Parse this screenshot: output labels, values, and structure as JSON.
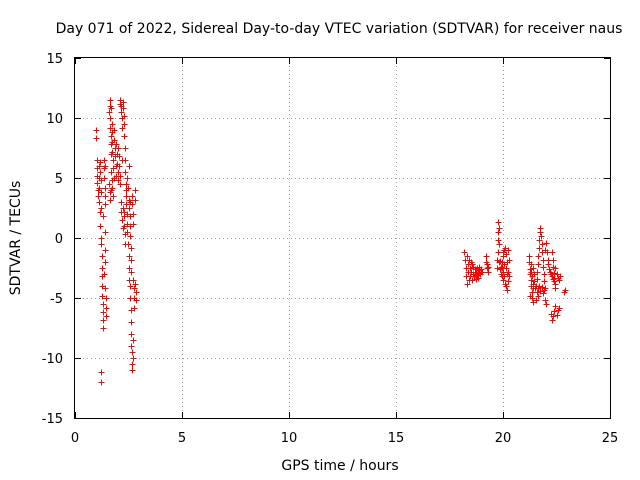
{
  "chart_data": {
    "type": "scatter",
    "title": "Day 071 of 2022, Sidereal Day-to-day VTEC variation (SDTVAR) for receiver naus",
    "xlabel": "GPS time / hours",
    "ylabel": "SDTVAR / TECUs",
    "xlim": [
      0,
      25
    ],
    "ylim": [
      -15,
      15
    ],
    "xticks": [
      0,
      5,
      10,
      15,
      20,
      25
    ],
    "yticks": [
      -15,
      -10,
      -5,
      0,
      5,
      10,
      15
    ],
    "grid": true,
    "marker": "+",
    "marker_color": "#ff0000",
    "series": [
      {
        "name": "SDTVAR",
        "points": [
          [
            1.0,
            9.0
          ],
          [
            1.0,
            8.3
          ],
          [
            1.02,
            6.5
          ],
          [
            1.03,
            5.8
          ],
          [
            1.05,
            5.2
          ],
          [
            1.05,
            4.6
          ],
          [
            1.07,
            4.0
          ],
          [
            1.08,
            3.5
          ],
          [
            1.1,
            6.0
          ],
          [
            1.1,
            5.0
          ],
          [
            1.12,
            4.2
          ],
          [
            1.13,
            3.0
          ],
          [
            1.15,
            2.2
          ],
          [
            1.15,
            1.0
          ],
          [
            1.17,
            5.5
          ],
          [
            1.18,
            6.3
          ],
          [
            1.2,
            4.8
          ],
          [
            1.2,
            3.8
          ],
          [
            1.22,
            2.5
          ],
          [
            1.22,
            0.0
          ],
          [
            1.23,
            -0.5
          ],
          [
            1.25,
            -1.5
          ],
          [
            1.25,
            -2.5
          ],
          [
            1.27,
            -3.2
          ],
          [
            1.28,
            -4.0
          ],
          [
            1.28,
            -4.8
          ],
          [
            1.3,
            -5.5
          ],
          [
            1.3,
            -6.2
          ],
          [
            1.32,
            -6.8
          ],
          [
            1.32,
            -7.5
          ],
          [
            1.2,
            -11.2
          ],
          [
            1.2,
            -12.0
          ],
          [
            1.35,
            6.5
          ],
          [
            1.35,
            5.8
          ],
          [
            1.37,
            5.0
          ],
          [
            1.38,
            4.2
          ],
          [
            1.4,
            3.5
          ],
          [
            1.4,
            2.8
          ],
          [
            1.42,
            6.0
          ],
          [
            1.42,
            -4.2
          ],
          [
            1.43,
            -5.0
          ],
          [
            1.45,
            -5.8
          ],
          [
            1.45,
            -6.5
          ],
          [
            1.35,
            -3.0
          ],
          [
            1.38,
            -2.0
          ],
          [
            1.4,
            -1.0
          ],
          [
            1.4,
            0.5
          ],
          [
            1.3,
            1.8
          ],
          [
            1.6,
            10.5
          ],
          [
            1.62,
            11.5
          ],
          [
            1.63,
            11.0
          ],
          [
            1.65,
            10.0
          ],
          [
            1.65,
            9.2
          ],
          [
            1.67,
            8.5
          ],
          [
            1.68,
            7.8
          ],
          [
            1.7,
            7.0
          ],
          [
            1.7,
            10.8
          ],
          [
            1.72,
            9.5
          ],
          [
            1.73,
            8.8
          ],
          [
            1.75,
            8.0
          ],
          [
            1.75,
            7.2
          ],
          [
            1.77,
            6.5
          ],
          [
            1.78,
            5.8
          ],
          [
            1.8,
            5.0
          ],
          [
            1.6,
            4.5
          ],
          [
            1.62,
            3.8
          ],
          [
            1.65,
            3.2
          ],
          [
            1.67,
            4.0
          ],
          [
            1.7,
            5.5
          ],
          [
            1.72,
            4.8
          ],
          [
            1.75,
            4.2
          ],
          [
            1.78,
            3.5
          ],
          [
            1.8,
            9.0
          ],
          [
            1.82,
            8.2
          ],
          [
            1.85,
            7.5
          ],
          [
            1.87,
            6.8
          ],
          [
            1.9,
            6.0
          ],
          [
            1.9,
            5.2
          ],
          [
            1.92,
            7.8
          ],
          [
            1.95,
            7.0
          ],
          [
            1.97,
            6.2
          ],
          [
            2.0,
            5.5
          ],
          [
            2.0,
            4.8
          ],
          [
            2.02,
            7.5
          ],
          [
            2.05,
            6.8
          ],
          [
            2.07,
            6.0
          ],
          [
            2.1,
            5.2
          ],
          [
            2.12,
            4.5
          ],
          [
            2.1,
            11.2
          ],
          [
            2.12,
            11.5
          ],
          [
            2.15,
            11.0
          ],
          [
            2.17,
            10.5
          ],
          [
            2.2,
            10.0
          ],
          [
            2.2,
            9.2
          ],
          [
            2.22,
            11.3
          ],
          [
            2.25,
            10.8
          ],
          [
            2.27,
            10.2
          ],
          [
            2.3,
            9.5
          ],
          [
            2.3,
            8.5
          ],
          [
            2.32,
            7.5
          ],
          [
            2.35,
            6.5
          ],
          [
            2.35,
            5.5
          ],
          [
            2.37,
            4.5
          ],
          [
            2.4,
            3.5
          ],
          [
            2.15,
            3.0
          ],
          [
            2.17,
            2.2
          ],
          [
            2.2,
            1.5
          ],
          [
            2.22,
            0.8
          ],
          [
            2.25,
            2.5
          ],
          [
            2.27,
            1.8
          ],
          [
            2.3,
            1.0
          ],
          [
            2.32,
            0.3
          ],
          [
            2.4,
            2.8
          ],
          [
            2.42,
            2.0
          ],
          [
            2.45,
            1.2
          ],
          [
            2.45,
            0.5
          ],
          [
            2.47,
            -0.5
          ],
          [
            2.5,
            -1.5
          ],
          [
            2.5,
            -2.5
          ],
          [
            2.52,
            -3.5
          ],
          [
            2.5,
            3.2
          ],
          [
            2.52,
            2.5
          ],
          [
            2.55,
            1.8
          ],
          [
            2.55,
            1.0
          ],
          [
            2.57,
            0.2
          ],
          [
            2.6,
            -0.8
          ],
          [
            2.6,
            -1.8
          ],
          [
            2.62,
            -2.8
          ],
          [
            2.55,
            -4.0
          ],
          [
            2.57,
            -5.0
          ],
          [
            2.6,
            -6.0
          ],
          [
            2.6,
            -7.0
          ],
          [
            2.62,
            -8.0
          ],
          [
            2.62,
            -9.0
          ],
          [
            2.65,
            -9.5
          ],
          [
            2.65,
            -10.5
          ],
          [
            2.65,
            3.5
          ],
          [
            2.67,
            2.8
          ],
          [
            2.7,
            2.0
          ],
          [
            2.7,
            1.2
          ],
          [
            2.72,
            -3.5
          ],
          [
            2.75,
            -4.2
          ],
          [
            2.75,
            -5.0
          ],
          [
            2.77,
            -5.8
          ],
          [
            2.8,
            4.0
          ],
          [
            2.8,
            3.2
          ],
          [
            2.82,
            -3.8
          ],
          [
            2.85,
            -4.5
          ],
          [
            2.85,
            -5.2
          ],
          [
            2.7,
            -8.5
          ],
          [
            2.72,
            -10.0
          ],
          [
            2.68,
            -11.0
          ],
          [
            2.45,
            5.0
          ],
          [
            2.47,
            4.2
          ],
          [
            2.5,
            6.0
          ],
          [
            2.35,
            -0.5
          ],
          [
            2.3,
            2.2
          ],
          [
            2.55,
            3.0
          ],
          [
            2.4,
            4.0
          ],
          [
            2.2,
            6.5
          ],
          [
            18.2,
            -1.2
          ],
          [
            18.22,
            -1.8
          ],
          [
            18.25,
            -2.5
          ],
          [
            18.27,
            -3.2
          ],
          [
            18.3,
            -3.8
          ],
          [
            18.32,
            -1.5
          ],
          [
            18.35,
            -2.2
          ],
          [
            18.37,
            -2.8
          ],
          [
            18.4,
            -3.5
          ],
          [
            18.42,
            -1.8
          ],
          [
            18.45,
            -2.5
          ],
          [
            18.47,
            -3.2
          ],
          [
            18.5,
            -2.0
          ],
          [
            18.52,
            -2.8
          ],
          [
            18.55,
            -3.5
          ],
          [
            18.57,
            -2.2
          ],
          [
            18.6,
            -3.0
          ],
          [
            18.62,
            -2.4
          ],
          [
            18.65,
            -3.2
          ],
          [
            18.67,
            -2.6
          ],
          [
            18.7,
            -3.0
          ],
          [
            18.72,
            -2.8
          ],
          [
            18.75,
            -3.4
          ],
          [
            18.78,
            -2.5
          ],
          [
            18.8,
            -3.1
          ],
          [
            18.82,
            -2.7
          ],
          [
            18.85,
            -3.3
          ],
          [
            18.88,
            -2.9
          ],
          [
            18.9,
            -2.4
          ],
          [
            18.92,
            -3.0
          ],
          [
            18.95,
            -2.6
          ],
          [
            19.0,
            -2.8
          ],
          [
            19.2,
            -1.5
          ],
          [
            19.22,
            -2.0
          ],
          [
            19.25,
            -2.5
          ],
          [
            19.27,
            -2.2
          ],
          [
            19.3,
            -2.8
          ],
          [
            19.32,
            -2.4
          ],
          [
            19.7,
            -1.8
          ],
          [
            19.72,
            -2.5
          ],
          [
            19.75,
            -1.2
          ],
          [
            19.75,
            -0.2
          ],
          [
            19.77,
            0.5
          ],
          [
            19.78,
            1.3
          ],
          [
            19.8,
            0.8
          ],
          [
            19.82,
            -0.5
          ],
          [
            19.8,
            -2.0
          ],
          [
            19.85,
            -2.6
          ],
          [
            19.88,
            -1.9
          ],
          [
            19.9,
            -2.4
          ],
          [
            19.92,
            -3.0
          ],
          [
            19.95,
            -2.5
          ],
          [
            19.97,
            -2.0
          ],
          [
            20.0,
            -2.8
          ],
          [
            20.0,
            -3.5
          ],
          [
            20.02,
            -1.5
          ],
          [
            20.05,
            -1.0
          ],
          [
            20.05,
            -2.2
          ],
          [
            20.07,
            -3.2
          ],
          [
            20.1,
            -3.8
          ],
          [
            20.12,
            -2.5
          ],
          [
            20.15,
            -1.3
          ],
          [
            20.15,
            -4.0
          ],
          [
            20.17,
            -3.0
          ],
          [
            20.2,
            -2.0
          ],
          [
            20.2,
            -4.3
          ],
          [
            20.22,
            -3.6
          ],
          [
            20.25,
            -2.8
          ],
          [
            20.27,
            -1.8
          ],
          [
            20.3,
            -3.2
          ],
          [
            20.0,
            -1.2
          ],
          [
            20.1,
            -0.8
          ],
          [
            20.22,
            -1.0
          ],
          [
            19.95,
            -3.2
          ],
          [
            21.2,
            -1.5
          ],
          [
            21.22,
            -2.0
          ],
          [
            21.25,
            -2.6
          ],
          [
            21.27,
            -3.0
          ],
          [
            21.3,
            -3.5
          ],
          [
            21.32,
            -4.0
          ],
          [
            21.35,
            -4.5
          ],
          [
            21.37,
            -5.0
          ],
          [
            21.3,
            -2.2
          ],
          [
            21.33,
            -2.8
          ],
          [
            21.35,
            -3.2
          ],
          [
            21.38,
            -3.8
          ],
          [
            21.4,
            -4.2
          ],
          [
            21.42,
            -2.5
          ],
          [
            21.45,
            -3.0
          ],
          [
            21.47,
            -3.6
          ],
          [
            21.5,
            -4.2
          ],
          [
            21.52,
            -5.2
          ],
          [
            21.55,
            -4.0
          ],
          [
            21.57,
            -3.4
          ],
          [
            21.6,
            -2.8
          ],
          [
            21.62,
            -2.2
          ],
          [
            21.65,
            -1.5
          ],
          [
            21.67,
            -0.8
          ],
          [
            21.7,
            -0.2
          ],
          [
            21.72,
            0.5
          ],
          [
            21.75,
            0.8
          ],
          [
            21.77,
            0.2
          ],
          [
            21.8,
            -0.5
          ],
          [
            21.82,
            -1.2
          ],
          [
            21.85,
            -1.8
          ],
          [
            21.87,
            -2.4
          ],
          [
            21.6,
            -4.5
          ],
          [
            21.62,
            -4.8
          ],
          [
            21.65,
            -4.2
          ],
          [
            21.7,
            -4.0
          ],
          [
            21.75,
            -4.4
          ],
          [
            21.8,
            -4.1
          ],
          [
            21.85,
            -4.6
          ],
          [
            21.9,
            -4.3
          ],
          [
            21.9,
            -3.0
          ],
          [
            21.92,
            -3.6
          ],
          [
            21.95,
            -4.2
          ],
          [
            21.97,
            -5.2
          ],
          [
            22.0,
            -5.5
          ],
          [
            21.95,
            -1.0
          ],
          [
            22.0,
            -0.4
          ],
          [
            22.05,
            -1.2
          ],
          [
            22.1,
            -1.8
          ],
          [
            22.12,
            -2.2
          ],
          [
            22.15,
            -2.6
          ],
          [
            22.2,
            -2.8
          ],
          [
            22.25,
            -3.0
          ],
          [
            22.3,
            -3.2
          ],
          [
            22.35,
            -3.4
          ],
          [
            22.4,
            -3.6
          ],
          [
            22.3,
            -1.2
          ],
          [
            22.32,
            -1.8
          ],
          [
            22.35,
            -2.4
          ],
          [
            22.37,
            -2.9
          ],
          [
            22.4,
            -3.3
          ],
          [
            22.42,
            -3.8
          ],
          [
            22.45,
            -4.2
          ],
          [
            22.45,
            -2.5
          ],
          [
            22.25,
            -6.3
          ],
          [
            22.3,
            -6.8
          ],
          [
            22.35,
            -6.5
          ],
          [
            22.4,
            -6.1
          ],
          [
            22.45,
            -5.7
          ],
          [
            22.5,
            -6.4
          ],
          [
            22.55,
            -6.0
          ],
          [
            22.6,
            -5.8
          ],
          [
            22.5,
            -3.0
          ],
          [
            22.55,
            -3.3
          ],
          [
            22.6,
            -3.5
          ],
          [
            22.65,
            -3.2
          ],
          [
            22.85,
            -4.5
          ],
          [
            22.9,
            -4.3
          ],
          [
            21.25,
            -4.8
          ],
          [
            21.4,
            -5.3
          ]
        ]
      }
    ]
  }
}
